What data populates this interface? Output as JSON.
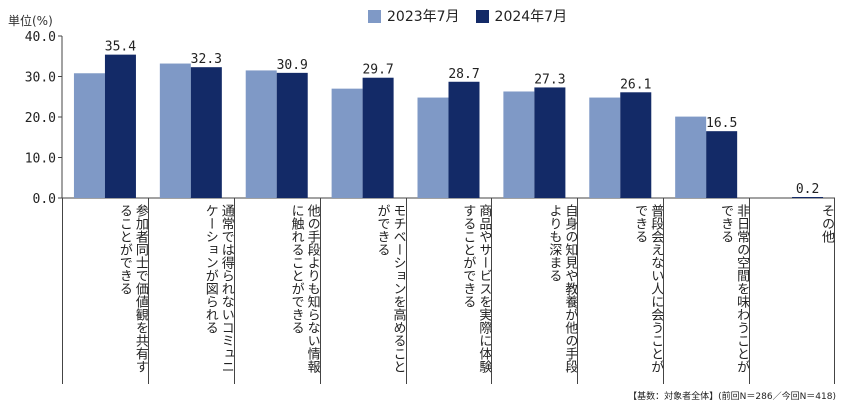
{
  "unit_label": "単位(%)",
  "note": "【基数：対象者全体】(前回N＝286／今回N＝418)",
  "legend": [
    {
      "label": "2023年7月",
      "color": "#7f99c6"
    },
    {
      "label": "2024年7月",
      "color": "#132a67"
    }
  ],
  "chart_data": {
    "type": "bar",
    "categories": [
      "参加者同士で価値観を共有することができる",
      "通常では得られないコミュニケーションが図られる",
      "他の手段よりも知らない情報に触れることができる",
      "モチベーションを高めることができる",
      "商品やサービスを実際に体験することができる",
      "自身の知見や教養が他の手段よりも深まる",
      "普段会えない人に会うことができる",
      "非日常の空間を味わうことができる",
      "その他"
    ],
    "series": [
      {
        "name": "2023年7月",
        "color": "#7f99c6",
        "values": [
          30.8,
          33.2,
          31.5,
          27.0,
          24.8,
          26.3,
          24.8,
          20.1,
          0.0
        ]
      },
      {
        "name": "2024年7月",
        "color": "#132a67",
        "values": [
          35.4,
          32.3,
          30.9,
          29.7,
          28.7,
          27.3,
          26.1,
          16.5,
          0.2
        ]
      }
    ],
    "data_labels": [
      "35.4",
      "32.3",
      "30.9",
      "29.7",
      "28.7",
      "27.3",
      "26.1",
      "16.5",
      "0.2"
    ],
    "y_ticks": [
      "0.0",
      "10.0",
      "20.0",
      "30.0",
      "40.0"
    ],
    "ylim": [
      0,
      40
    ],
    "grid": false,
    "legend_position": "top-center"
  }
}
